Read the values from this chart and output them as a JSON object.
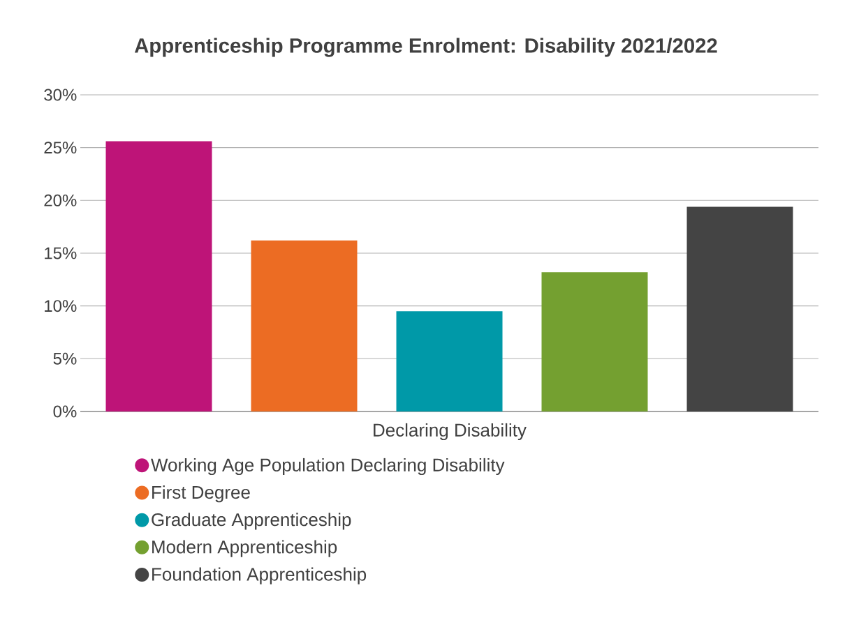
{
  "chart_data": {
    "type": "bar",
    "title": "Apprenticeship Programme Enrolment: Disability 2021/2022",
    "xlabel": "Declaring Disability",
    "categories": [
      null
    ],
    "series": [
      {
        "name": "Working Age Population Declaring Disability",
        "color": "#be1478",
        "values": [
          25.6
        ]
      },
      {
        "name": "First Degree",
        "color": "#ec6c23",
        "values": [
          16.2
        ]
      },
      {
        "name": "Graduate Apprenticeship",
        "color": "#0099a8",
        "values": [
          9.5
        ]
      },
      {
        "name": "Modern Apprenticeship",
        "color": "#74a030",
        "values": [
          13.2
        ]
      },
      {
        "name": "Foundation Apprenticeship",
        "color": "#444444",
        "values": [
          19.4
        ]
      }
    ],
    "ylim": [
      0,
      30
    ],
    "yticks": [
      {
        "value": 0,
        "label": "0%"
      },
      {
        "value": 5,
        "label": "5%"
      },
      {
        "value": 10,
        "label": "10%"
      },
      {
        "value": 15,
        "label": "15%"
      },
      {
        "value": 20,
        "label": "20%"
      },
      {
        "value": 25,
        "label": "25%"
      },
      {
        "value": 30,
        "label": "30%"
      }
    ],
    "grid": "y",
    "legend": "bottom"
  }
}
